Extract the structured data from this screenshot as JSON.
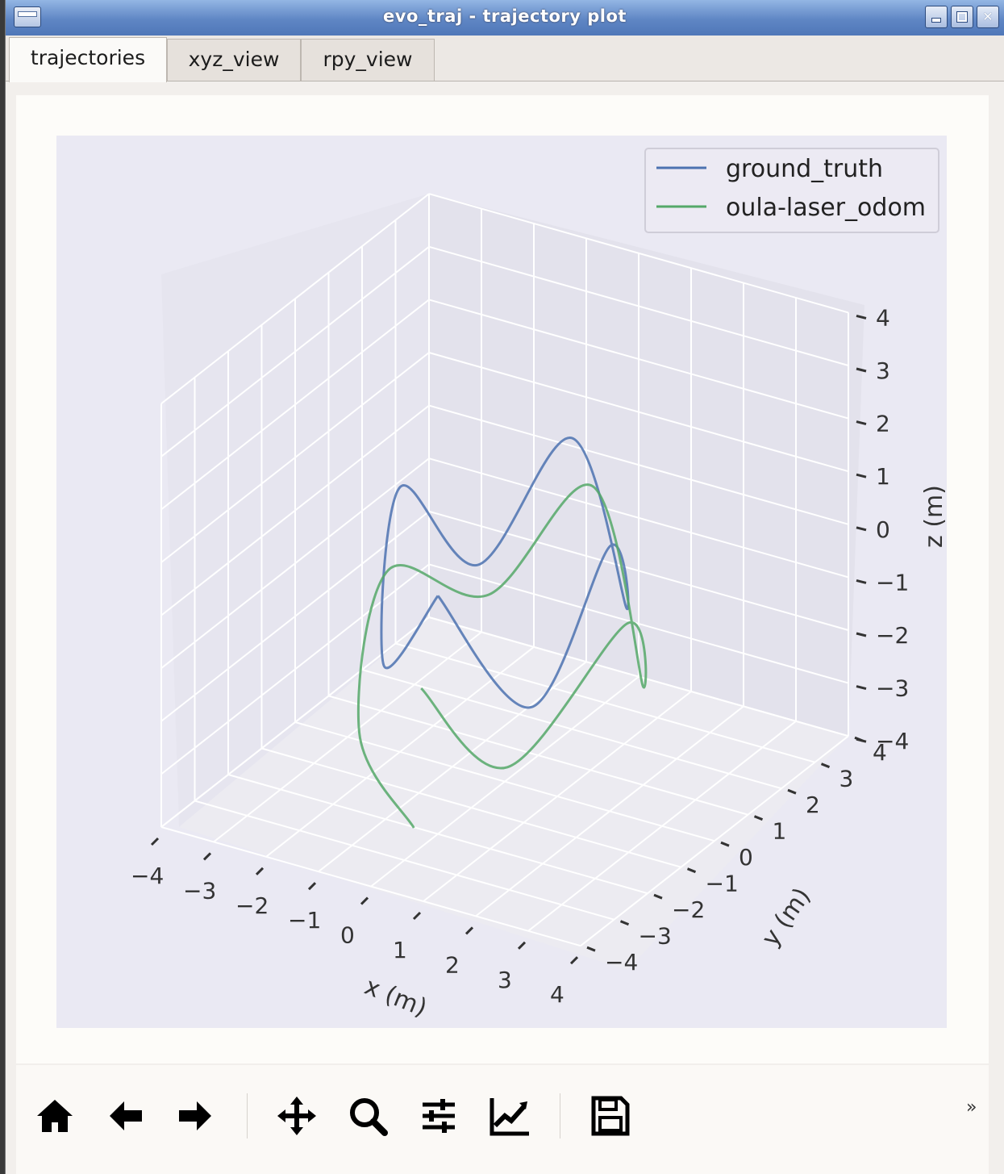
{
  "window": {
    "title": "evo_traj - trajectory plot"
  },
  "tabs": [
    {
      "label": "trajectories",
      "active": true
    },
    {
      "label": "xyz_view",
      "active": false
    },
    {
      "label": "rpy_view",
      "active": false
    }
  ],
  "chart_data": {
    "type": "line",
    "projection": "3d",
    "xlabel": "x (m)",
    "ylabel": "y (m)",
    "zlabel": "z (m)",
    "xlim": [
      -4,
      4
    ],
    "ylim": [
      -4,
      4
    ],
    "zlim": [
      -4,
      4
    ],
    "x_ticks": [
      "−4",
      "−3",
      "−2",
      "−1",
      "0",
      "1",
      "2",
      "3",
      "4"
    ],
    "y_ticks": [
      "−4",
      "−3",
      "−2",
      "−1",
      "0",
      "1",
      "2",
      "3",
      "4"
    ],
    "z_ticks": [
      "4",
      "3",
      "2",
      "1",
      "0",
      "−1",
      "−2",
      "−3",
      "−4"
    ],
    "grid": true,
    "legend_position": "top-right",
    "series": [
      {
        "name": "ground_truth",
        "color": "#4c72b0",
        "x": [
          0,
          1.41,
          2,
          1.41,
          0,
          -1.41,
          -2,
          -1.41,
          0
        ],
        "y": [
          -2,
          -1.41,
          0,
          1.41,
          2,
          1.41,
          0,
          -1.41,
          -2
        ],
        "z": [
          0.5,
          -1.5,
          1,
          -1,
          1.5,
          -1,
          1,
          -1.5,
          0.5
        ]
      },
      {
        "name": "oula-laser_odom",
        "color": "#55a868",
        "x": [
          0,
          1.2,
          2.2,
          1.6,
          0.2,
          -1.2,
          -2.1,
          -1.5,
          0.5
        ],
        "y": [
          -2.5,
          -1.8,
          0.2,
          1.6,
          2.3,
          1.4,
          -0.2,
          -2,
          -3.5
        ],
        "z": [
          -1,
          -2.5,
          -0.5,
          -2.5,
          0.5,
          -1.5,
          -0.5,
          -2.5,
          -3
        ]
      }
    ]
  },
  "toolbar": {
    "items": [
      {
        "name": "home-icon"
      },
      {
        "name": "back-icon"
      },
      {
        "name": "forward-icon"
      },
      {
        "name": "pan-icon"
      },
      {
        "name": "zoom-icon"
      },
      {
        "name": "configure-subplots-icon"
      },
      {
        "name": "edit-axis-icon"
      },
      {
        "name": "save-icon"
      }
    ],
    "overflow_label": "»"
  }
}
